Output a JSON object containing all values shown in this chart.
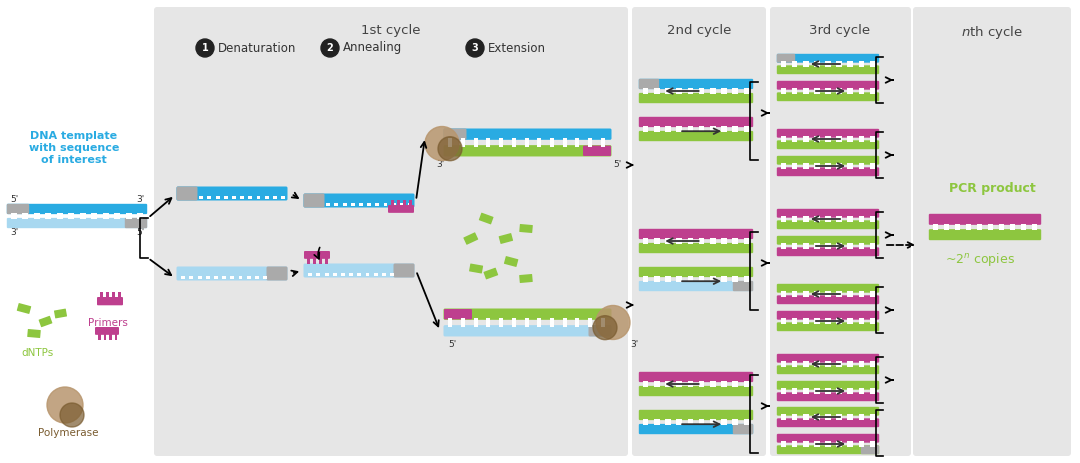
{
  "bg_white": "#ffffff",
  "bg_gray": "#e6e6e6",
  "color_blue": "#29abe2",
  "color_blue_light": "#a8d8f0",
  "color_green": "#8dc63f",
  "color_magenta": "#be3f8e",
  "color_gray_dna": "#aaaaaa",
  "color_brown_light": "#b8966e",
  "color_brown_dark": "#7a5c30",
  "color_dark": "#333333",
  "color_text_blue": "#29abe2",
  "color_text_green": "#8dc63f",
  "color_text_magenta": "#be3f8e",
  "color_text_brown": "#7a5c30",
  "title_1st": "1st cycle",
  "title_2nd": "2nd cycle",
  "title_3rd": "3rd cycle",
  "title_nth": "nth cycle",
  "label_denaturation": "Denaturation",
  "label_annealing": "Annealing",
  "label_extension": "Extension",
  "label_dna": "DNA template\nwith sequence\nof interest",
  "label_dntps": "dNTPs",
  "label_primers": "Primers",
  "label_polymerase": "Polymerase",
  "label_pcr": "PCR product",
  "fig_width": 10.8,
  "fig_height": 4.63
}
